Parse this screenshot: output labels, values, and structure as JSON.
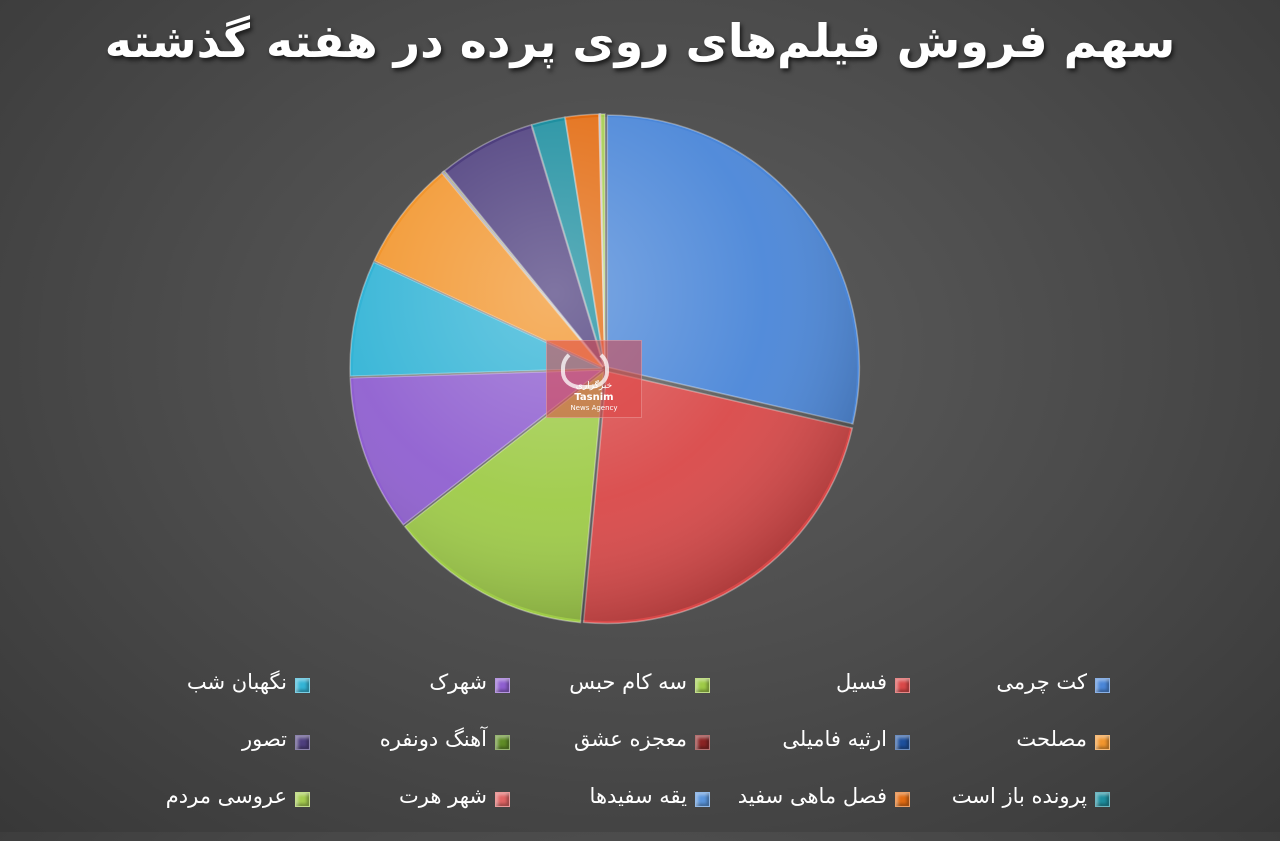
{
  "chart_data": {
    "type": "pie",
    "title": "سهم فروش فیلم‌های روی پرده در هفته گذشته",
    "legend_position": "bottom",
    "categories": [
      "کت چرمی",
      "فسیل",
      "سه کام حبس",
      "شهرک",
      "نگهبان شب",
      "مصلحت",
      "ارثیه فامیلی",
      "معجزه عشق",
      "آهنگ دونفره",
      "تصور",
      "پرونده باز است",
      "فصل ماهی سفید",
      "یقه سفیدها",
      "شهر هرت",
      "عروسی مردم"
    ],
    "values": [
      30.8,
      24.6,
      14.0,
      10.8,
      8.0,
      7.6,
      0.05,
      0.05,
      0.05,
      6.7,
      2.3,
      2.3,
      0.05,
      0.05,
      0.3
    ],
    "colors": [
      "#4a86d8",
      "#d94848",
      "#9ecb47",
      "#8f5fd0",
      "#33b4d6",
      "#f2962e",
      "#1d4f9c",
      "#8a2323",
      "#5f8c26",
      "#4e3f7e",
      "#1e8fa0",
      "#e36c12",
      "#5a95dc",
      "#e06464",
      "#a5cc4f"
    ]
  },
  "watermark": {
    "line1": "خبرگزاری",
    "line2": "Tasnim",
    "line3": "News Agency"
  }
}
